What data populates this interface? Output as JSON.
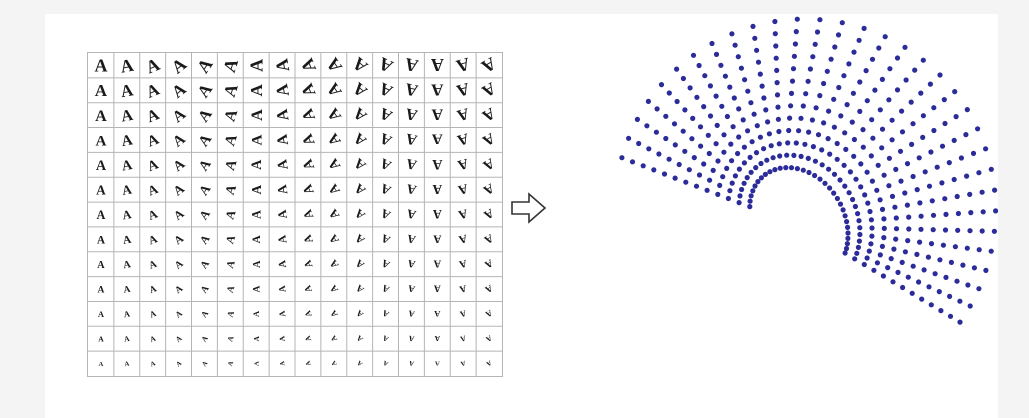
{
  "grid": {
    "rows": 13,
    "cols": 16,
    "glyph": "A",
    "rotations": [
      0,
      -10,
      -22,
      -38,
      -55,
      -72,
      -90,
      -100,
      -112,
      -125,
      -140,
      -155,
      -168,
      -180,
      -195,
      -210
    ]
  },
  "colors": {
    "background": "#f4f4f4",
    "panel": "#ffffff",
    "grid_line": "#b5b5b5",
    "glyph": "#1a1a1a",
    "dot": "#2b2b9a",
    "arrow": "#333333"
  },
  "icons": {
    "transform_arrow": "hollow-right-arrow-icon"
  }
}
